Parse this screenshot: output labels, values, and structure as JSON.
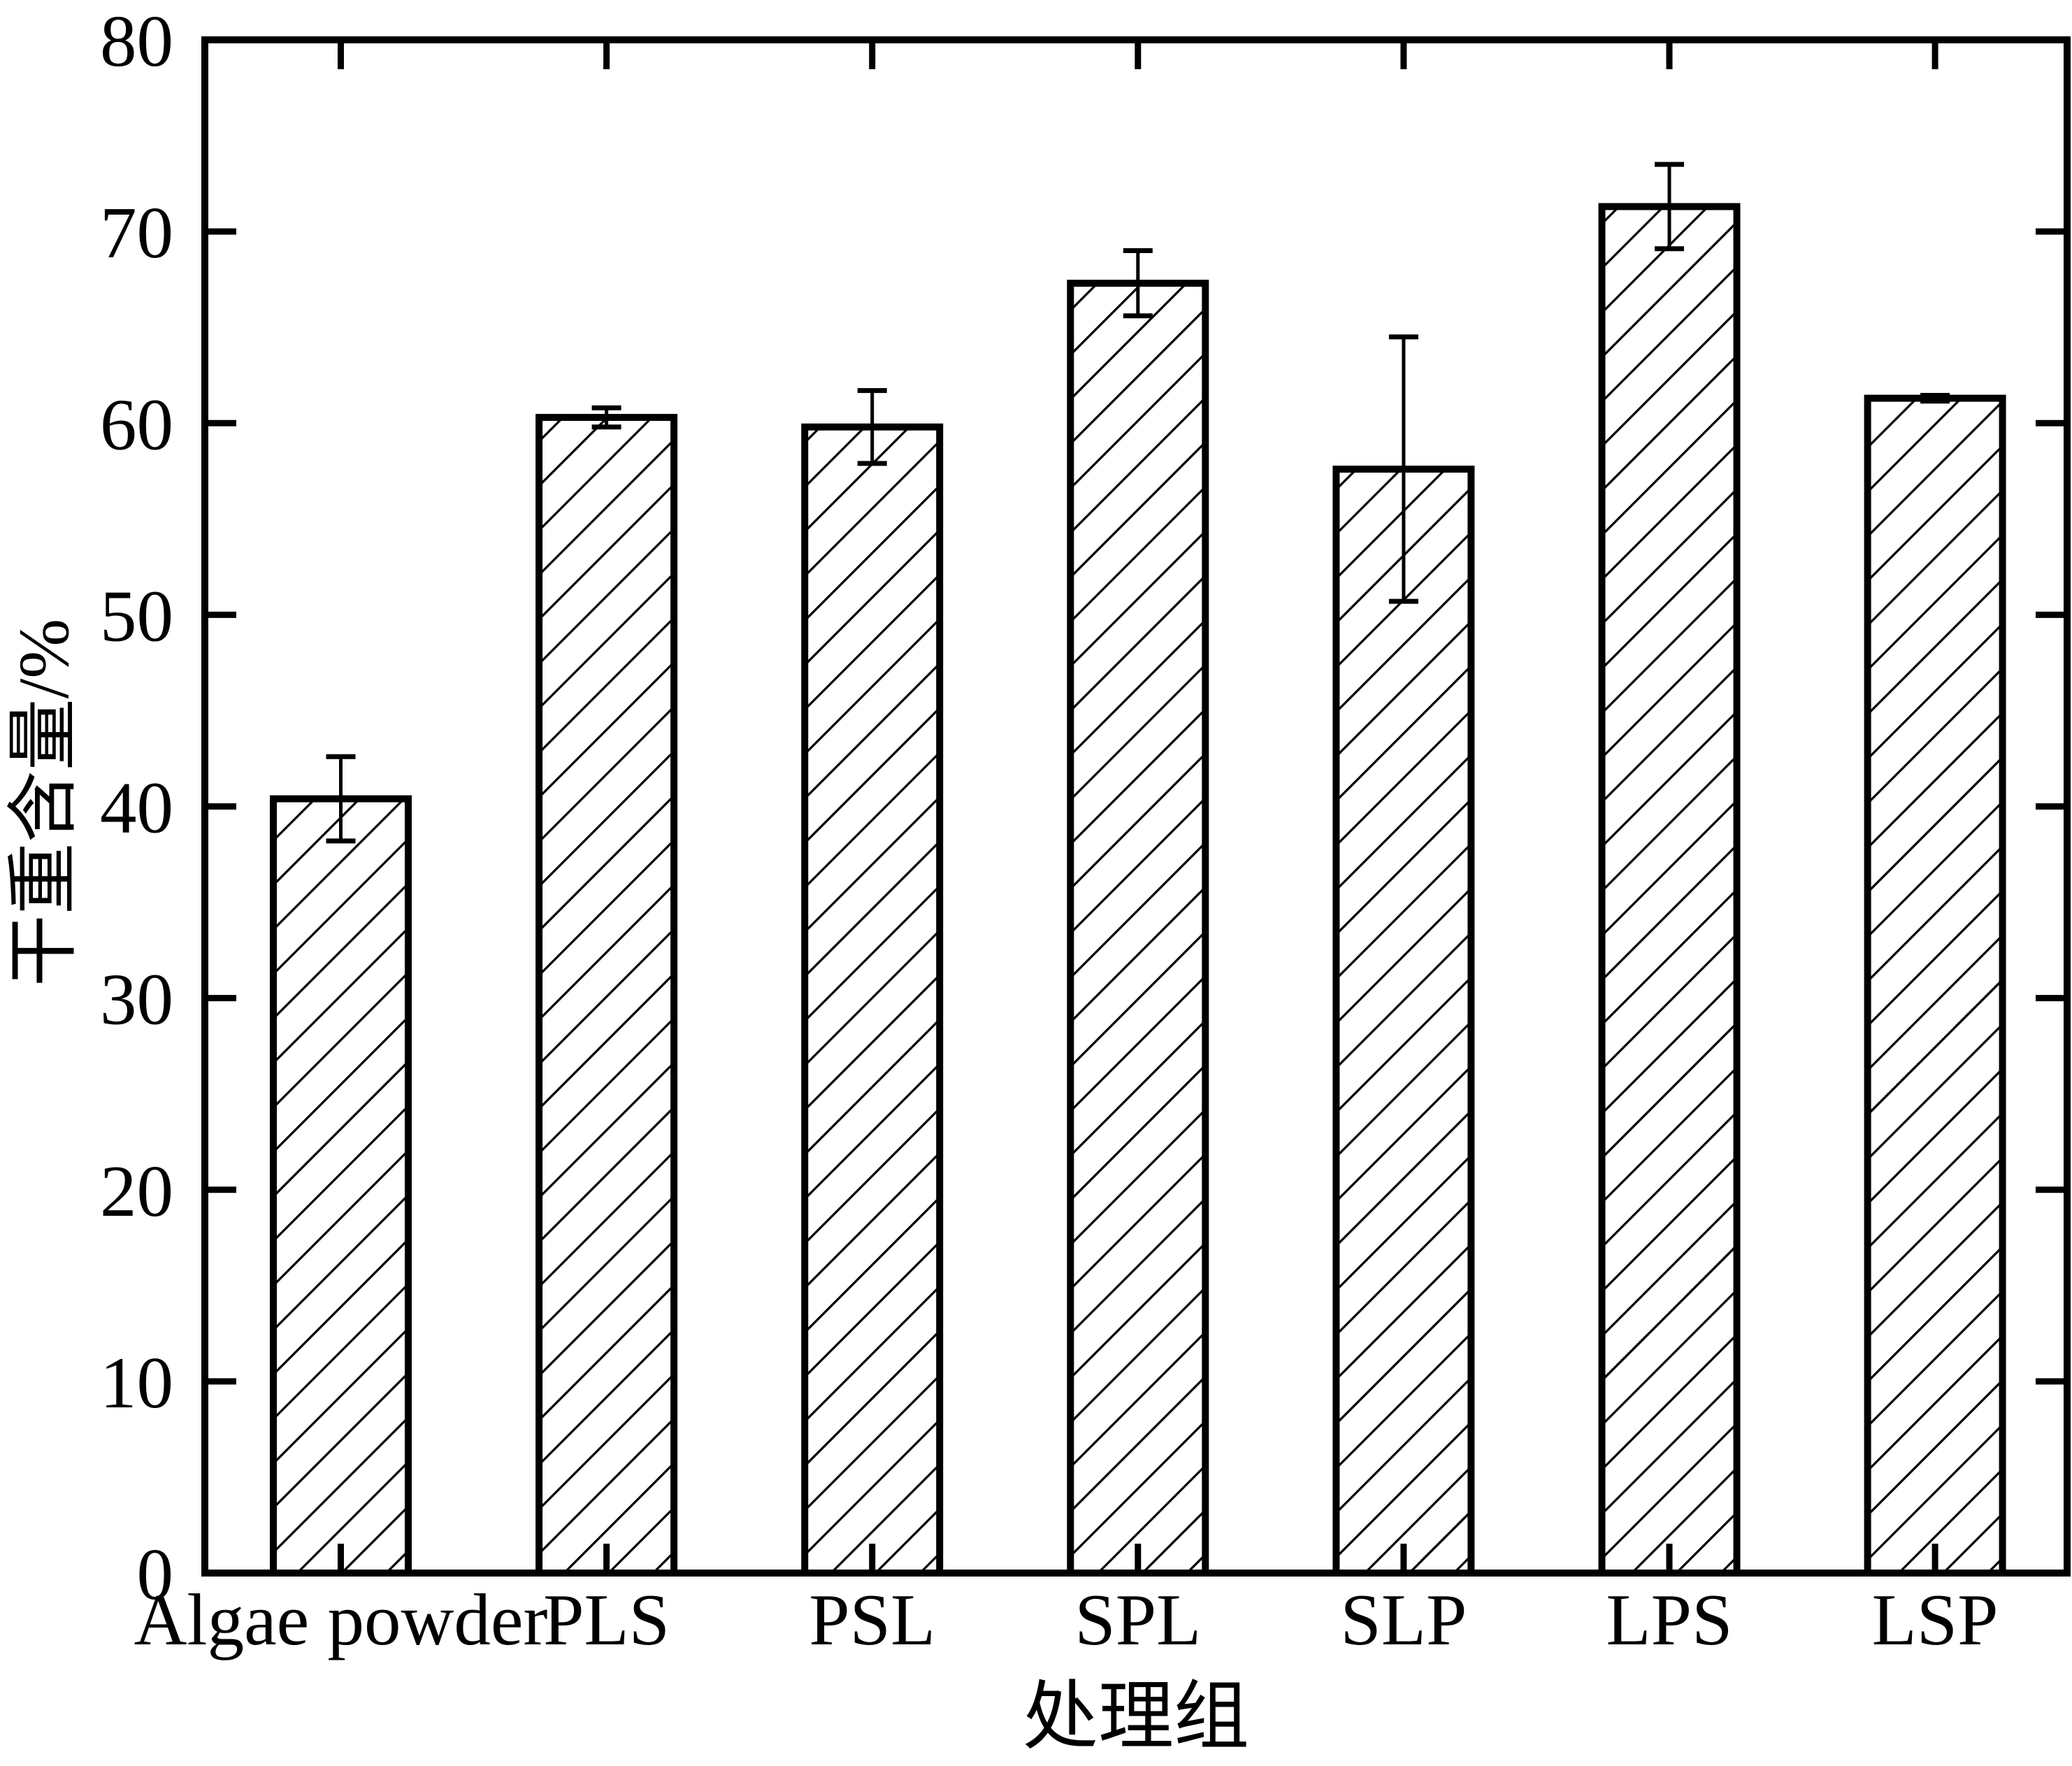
{
  "figure": {
    "background_color": "#ffffff",
    "ink_color": "#000000"
  },
  "chart_data": {
    "type": "bar",
    "title": "",
    "xlabel": "处理组",
    "ylabel": "干重含量/%",
    "categories": [
      "Algae powder",
      "PLS",
      "PSL",
      "SPL",
      "SLP",
      "LPS",
      "LSP"
    ],
    "values": [
      40.4,
      60.3,
      59.8,
      67.3,
      57.6,
      71.3,
      61.3
    ],
    "errors": [
      2.2,
      0.5,
      1.9,
      1.7,
      6.9,
      2.2,
      0.15
    ],
    "series": [
      {
        "name": "干重含量",
        "values": [
          40.4,
          60.3,
          59.8,
          67.3,
          57.6,
          71.3,
          61.3
        ],
        "errors_plus": [
          2.2,
          0.5,
          1.9,
          1.7,
          6.9,
          2.2,
          0.15
        ],
        "errors_minus": [
          2.2,
          0.5,
          1.9,
          1.7,
          6.9,
          2.2,
          0.15
        ]
      }
    ],
    "ylim": [
      0,
      80
    ],
    "ytick_step": 10,
    "ytick_labels": [
      "0",
      "10",
      "20",
      "30",
      "40",
      "50",
      "60",
      "70",
      "80"
    ],
    "grid": false,
    "legend": "none",
    "bar_fill": "hatch-diagonal",
    "bar_fill_color": "#ffffff",
    "bar_edge_color": "#000000",
    "frame": "full-box-with-mirrored-inward-ticks"
  }
}
